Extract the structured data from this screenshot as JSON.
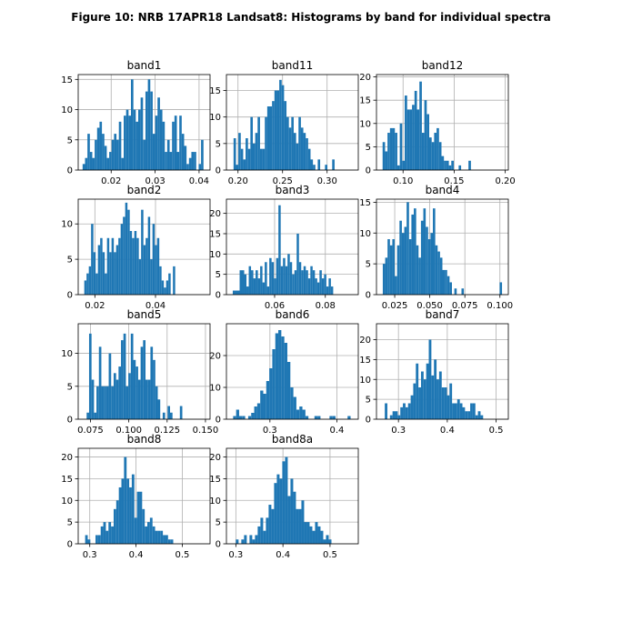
{
  "figure": {
    "title": "Figure 10: NRB 17APR18  Landsat8: Histograms by band for individual spectra",
    "bar_color": "#1f77b4",
    "grid_color": "#b0b0b0"
  },
  "chart_data": [
    {
      "type": "bar",
      "title": "band1",
      "grid": true,
      "xlim": [
        0.0125,
        0.0425
      ],
      "ylim": [
        0,
        15.8
      ],
      "xticks": [
        0.02,
        0.03,
        0.04
      ],
      "xtick_labels": [
        "0.02",
        "0.03",
        "0.04"
      ],
      "yticks": [
        0,
        5,
        10,
        15
      ],
      "ytick_labels": [
        "0",
        "5",
        "10",
        "15"
      ],
      "bin_start": 0.0135,
      "bin_width": 0.00055,
      "counts": [
        1,
        2,
        6,
        3,
        2,
        5,
        7,
        8,
        6,
        4,
        2,
        3,
        5,
        6,
        5,
        8,
        2,
        9,
        10,
        9,
        15,
        10,
        8,
        10,
        12,
        5,
        13,
        15,
        13,
        6,
        9,
        12,
        10,
        8,
        3,
        5,
        3,
        8,
        9,
        3,
        9,
        6,
        4,
        1,
        2,
        3,
        3,
        0,
        1,
        5
      ]
    },
    {
      "type": "bar",
      "title": "band11",
      "grid": true,
      "xlim": [
        0.187,
        0.335
      ],
      "ylim": [
        0,
        18
      ],
      "xticks": [
        0.2,
        0.25,
        0.3
      ],
      "xtick_labels": [
        "0.20",
        "0.25",
        "0.30"
      ],
      "yticks": [
        0,
        5,
        10,
        15
      ],
      "ytick_labels": [
        "0",
        "5",
        "10",
        "15"
      ],
      "bin_start": 0.195,
      "bin_width": 0.0027,
      "counts": [
        6,
        1,
        7,
        4,
        2,
        6,
        4,
        10,
        5,
        7,
        10,
        4,
        4,
        10,
        12,
        12,
        13,
        15,
        15,
        17,
        16,
        13,
        10,
        8,
        10,
        7,
        5,
        10,
        8,
        7,
        6,
        4,
        2,
        1,
        0,
        2,
        0,
        0,
        1,
        0,
        0,
        2
      ]
    },
    {
      "type": "bar",
      "title": "band12",
      "grid": true,
      "xlim": [
        0.074,
        0.203
      ],
      "ylim": [
        0,
        20.5
      ],
      "xticks": [
        0.1,
        0.15,
        0.2
      ],
      "xtick_labels": [
        "0.10",
        "0.15",
        "0.20"
      ],
      "yticks": [
        0,
        5,
        10,
        15,
        20
      ],
      "ytick_labels": [
        "0",
        "5",
        "10",
        "15",
        "20"
      ],
      "bin_start": 0.08,
      "bin_width": 0.0024,
      "counts": [
        6,
        4,
        8,
        9,
        9,
        8,
        1,
        10,
        2,
        16,
        13,
        13,
        14,
        17,
        13,
        19,
        8,
        15,
        12,
        7,
        6,
        8,
        9,
        6,
        3,
        2,
        2,
        1,
        2,
        0,
        0,
        1,
        0,
        0,
        0,
        2
      ]
    },
    {
      "type": "bar",
      "title": "band2",
      "grid": true,
      "xlim": [
        0.0145,
        0.058
      ],
      "ylim": [
        0,
        13.5
      ],
      "xticks": [
        0.02,
        0.04
      ],
      "xtick_labels": [
        "0.02",
        "0.04"
      ],
      "yticks": [
        0,
        5,
        10
      ],
      "ytick_labels": [
        "0",
        "5",
        "10"
      ],
      "bin_start": 0.0165,
      "bin_width": 0.00075,
      "counts": [
        2,
        3,
        4,
        10,
        6,
        3,
        7,
        8,
        6,
        3,
        8,
        6,
        8,
        6,
        7,
        8,
        10,
        11,
        13,
        12,
        9,
        8,
        9,
        8,
        5,
        12,
        7,
        8,
        11,
        5,
        10,
        7,
        8,
        4,
        2,
        1,
        2,
        3,
        0,
        4
      ]
    },
    {
      "type": "bar",
      "title": "band3",
      "grid": true,
      "xlim": [
        0.041,
        0.093
      ],
      "ylim": [
        0,
        23.5
      ],
      "xticks": [
        0.06,
        0.08
      ],
      "xtick_labels": [
        "0.06",
        "0.08"
      ],
      "yticks": [
        0,
        5,
        10,
        15,
        20
      ],
      "ytick_labels": [
        "0",
        "5",
        "10",
        "15",
        "20"
      ],
      "bin_start": 0.0435,
      "bin_width": 0.0009,
      "counts": [
        1,
        1,
        1,
        6,
        6,
        5,
        2,
        7,
        6,
        4,
        6,
        4,
        7,
        3,
        8,
        2,
        9,
        8,
        4,
        9,
        22,
        7,
        9,
        7,
        10,
        8,
        5,
        6,
        15,
        8,
        6,
        7,
        6,
        4,
        7,
        6,
        4,
        3,
        6,
        4,
        5,
        2,
        4,
        2
      ]
    },
    {
      "type": "bar",
      "title": "band4",
      "grid": true,
      "xlim": [
        0.012,
        0.106
      ],
      "ylim": [
        0,
        15.5
      ],
      "xticks": [
        0.025,
        0.05,
        0.075,
        0.1
      ],
      "xtick_labels": [
        "0.025",
        "0.050",
        "0.075",
        "0.100"
      ],
      "yticks": [
        0,
        5,
        10,
        15
      ],
      "ytick_labels": [
        "0",
        "5",
        "10",
        "15"
      ],
      "bin_start": 0.0165,
      "bin_width": 0.0017,
      "counts": [
        5,
        6,
        9,
        8,
        9,
        3,
        8,
        12,
        10,
        11,
        15,
        9,
        13,
        14,
        8,
        6,
        12,
        14,
        11,
        9,
        10,
        14,
        8,
        7,
        6,
        4,
        4,
        3,
        2,
        0,
        1,
        0,
        0,
        1,
        0,
        0,
        0,
        0,
        0,
        0,
        0,
        0,
        0,
        0,
        0,
        0,
        0,
        0,
        0,
        2
      ]
    },
    {
      "type": "bar",
      "title": "band5",
      "grid": true,
      "xlim": [
        0.067,
        0.153
      ],
      "ylim": [
        0,
        14.5
      ],
      "xticks": [
        0.075,
        0.1,
        0.125,
        0.15
      ],
      "xtick_labels": [
        "0.075",
        "0.100",
        "0.125",
        "0.150"
      ],
      "yticks": [
        0,
        5,
        10
      ],
      "ytick_labels": [
        "0",
        "5",
        "10"
      ],
      "bin_start": 0.0725,
      "bin_width": 0.0016,
      "counts": [
        1,
        13,
        6,
        1,
        5,
        11,
        5,
        5,
        5,
        10,
        5,
        7,
        6,
        8,
        12,
        13,
        5,
        7,
        13,
        9,
        8,
        6,
        11,
        12,
        6,
        6,
        11,
        9,
        5,
        3,
        0,
        1,
        0,
        2,
        1,
        0,
        0,
        0,
        2
      ]
    },
    {
      "type": "bar",
      "title": "band6",
      "grid": true,
      "xlim": [
        0.235,
        0.432
      ],
      "ylim": [
        0,
        30
      ],
      "xticks": [
        0.3,
        0.4
      ],
      "xtick_labels": [
        "0.3",
        "0.4"
      ],
      "yticks": [
        0,
        10,
        20
      ],
      "ytick_labels": [
        "0",
        "10",
        "20"
      ],
      "bin_start": 0.245,
      "bin_width": 0.0045,
      "counts": [
        1,
        3,
        1,
        1,
        0,
        1,
        2,
        4,
        5,
        9,
        8,
        12,
        16,
        22,
        27,
        28,
        26,
        24,
        18,
        10,
        7,
        3,
        4,
        3,
        1,
        0,
        0,
        1,
        1,
        0,
        0,
        0,
        1,
        1,
        0,
        0,
        0,
        0,
        1
      ]
    },
    {
      "type": "bar",
      "title": "band7",
      "grid": true,
      "xlim": [
        0.255,
        0.525
      ],
      "ylim": [
        0,
        24
      ],
      "xticks": [
        0.3,
        0.4,
        0.5
      ],
      "xtick_labels": [
        "0.3",
        "0.4",
        "0.5"
      ],
      "yticks": [
        0,
        5,
        10,
        15,
        20
      ],
      "ytick_labels": [
        "0",
        "5",
        "10",
        "15",
        "20"
      ],
      "bin_start": 0.272,
      "bin_width": 0.0053,
      "counts": [
        4,
        0,
        1,
        2,
        2,
        1,
        3,
        4,
        3,
        4,
        6,
        9,
        14,
        8,
        12,
        10,
        14,
        20,
        11,
        15,
        10,
        12,
        8,
        8,
        6,
        9,
        4,
        4,
        5,
        4,
        3,
        2,
        2,
        4,
        4,
        1,
        2,
        1
      ]
    },
    {
      "type": "bar",
      "title": "band8",
      "grid": true,
      "xlim": [
        0.275,
        0.56
      ],
      "ylim": [
        0,
        22
      ],
      "xticks": [
        0.3,
        0.4,
        0.5
      ],
      "xtick_labels": [
        "0.3",
        "0.4",
        "0.5"
      ],
      "yticks": [
        0,
        5,
        10,
        15,
        20
      ],
      "ytick_labels": [
        "0",
        "5",
        "10",
        "15",
        "20"
      ],
      "bin_start": 0.29,
      "bin_width": 0.0056,
      "counts": [
        2,
        1,
        0,
        0,
        2,
        2,
        4,
        5,
        3,
        5,
        4,
        8,
        10,
        13,
        15,
        20,
        15,
        13,
        16,
        6,
        12,
        12,
        8,
        4,
        5,
        6,
        4,
        3,
        3,
        3,
        2,
        2,
        1,
        1
      ]
    },
    {
      "type": "bar",
      "title": "band8a",
      "grid": true,
      "xlim": [
        0.28,
        0.56
      ],
      "ylim": [
        0,
        22
      ],
      "xticks": [
        0.3,
        0.4,
        0.5
      ],
      "xtick_labels": [
        "0.3",
        "0.4",
        "0.5"
      ],
      "yticks": [
        0,
        5,
        10,
        15,
        20
      ],
      "ytick_labels": [
        "0",
        "5",
        "10",
        "15",
        "20"
      ],
      "bin_start": 0.3,
      "bin_width": 0.0058,
      "counts": [
        1,
        0,
        1,
        2,
        0,
        2,
        1,
        2,
        4,
        6,
        3,
        6,
        9,
        8,
        14,
        16,
        15,
        19,
        20,
        11,
        15,
        12,
        8,
        8,
        10,
        5,
        5,
        4,
        3,
        5,
        4,
        3,
        1,
        2,
        1
      ]
    }
  ]
}
